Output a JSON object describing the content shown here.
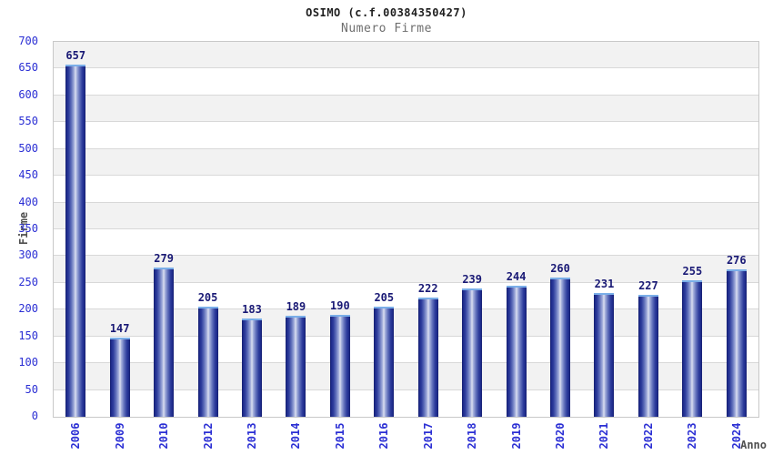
{
  "header": {
    "title": "OSIMO (c.f.00384350427)",
    "subtitle": "Numero Firme"
  },
  "chart_data": {
    "type": "bar",
    "title": "OSIMO (c.f.00384350427)",
    "subtitle": "Numero Firme",
    "xlabel": "Anno",
    "ylabel": "Firme",
    "categories": [
      "2006",
      "2009",
      "2010",
      "2012",
      "2013",
      "2014",
      "2015",
      "2016",
      "2017",
      "2018",
      "2019",
      "2020",
      "2021",
      "2022",
      "2023",
      "2024"
    ],
    "values": [
      657,
      147,
      279,
      205,
      183,
      189,
      190,
      205,
      222,
      239,
      244,
      260,
      231,
      227,
      255,
      276
    ],
    "ylim": [
      0,
      700
    ],
    "ytick_step": 50,
    "grid": "horizontal",
    "legend": "none",
    "colors": {
      "bar_dark": "#1d2a8a",
      "bar_light": "#dde2f2",
      "bar_top_highlight": "#7aaee8",
      "tick_label": "#2b2fd4",
      "value_label": "#191975",
      "band_gray": "#f2f2f2",
      "gridline": "#d8d8d8",
      "plot_border": "#c8c8c8",
      "axis_title": "#4f4f4f",
      "subtitle_gray": "#6e6e6e"
    }
  }
}
